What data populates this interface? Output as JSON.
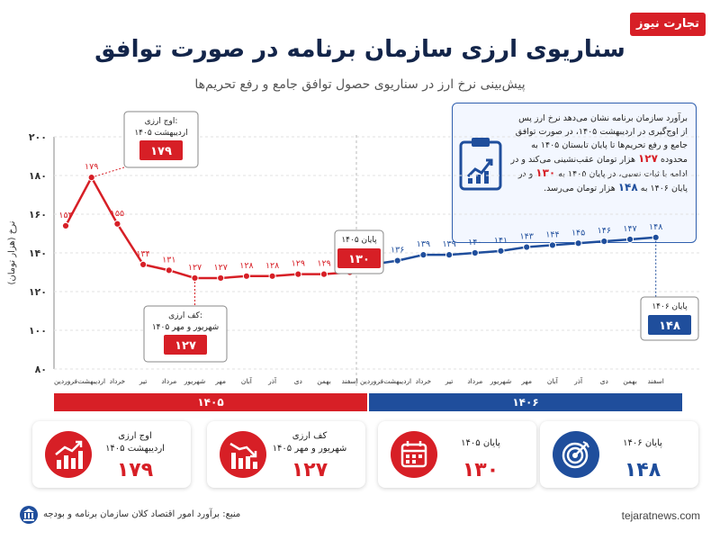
{
  "header": {
    "logo": "تجارت نیوز",
    "title": "سناریوی ارزی سازمان برنامه در صورت توافق",
    "subtitle": "پیش‌بینی نرخ ارز در سناریوی حصول توافق جامع و رفع تحریم‌ها"
  },
  "info": {
    "text_a": "برآورد سازمان برنامه نشان می‌دهد نرخ ارز پس از اوج‌گیری در اردیبهشت ۱۴۰۵، در صورت توافق جامع و رفع تحریم‌ها تا پایان تابستان ۱۴۰۵ به محدوده ",
    "text_a_num": "۱۲۷",
    "text_b": " هزار تومان عقب‌نشینی می‌کند و در ادامه با ثبات نسبی، در پایان ۱۴۰۵ به ",
    "text_b_num": "۱۳۰",
    "text_c": " و در پایان ۱۴۰۶ به ",
    "text_c_num": "۱۴۸",
    "text_d": " هزار تومان می‌رسد."
  },
  "chart_data": {
    "type": "line",
    "ylabel": "نرخ (هزار تومان)",
    "ylim": [
      80,
      200
    ],
    "yticks": [
      "۸۰",
      "۱۰۰",
      "۱۲۰",
      "۱۴۰",
      "۱۶۰",
      "۱۸۰",
      "۲۰۰"
    ],
    "ytick_values": [
      80,
      100,
      120,
      140,
      160,
      180,
      200
    ],
    "grid": true,
    "series": [
      {
        "name": "۱۴۰۵",
        "color": "#d71f26",
        "categories": [
          "فروردین",
          "اردیبهشت",
          "خرداد",
          "تیر",
          "مرداد",
          "شهریور",
          "مهر",
          "آبان",
          "آذر",
          "دی",
          "بهمن",
          "اسفند"
        ],
        "values": [
          154,
          179,
          155,
          134,
          131,
          127,
          127,
          128,
          128,
          129,
          129,
          130
        ],
        "labels": [
          "۱۵۴",
          "۱۷۹",
          "۱۵۵",
          "۱۳۴",
          "۱۳۱",
          "۱۲۷",
          "۱۲۷",
          "۱۲۸",
          "۱۲۸",
          "۱۲۹",
          "۱۲۹",
          "۱۳۰"
        ]
      },
      {
        "name": "۱۴۰۶",
        "color": "#1f4e9c",
        "categories": [
          "فروردین",
          "اردیبهشت",
          "خرداد",
          "تیر",
          "مرداد",
          "شهریور",
          "مهر",
          "آبان",
          "آذر",
          "دی",
          "بهمن",
          "اسفند"
        ],
        "values": [
          134,
          136,
          139,
          139,
          140,
          141,
          143,
          144,
          145,
          146,
          147,
          148
        ],
        "labels": [
          "۱۳۴",
          "۱۳۶",
          "۱۳۹",
          "۱۳۹",
          "۱۴۰",
          "۱۴۱",
          "۱۴۳",
          "۱۴۴",
          "۱۴۵",
          "۱۴۶",
          "۱۴۷",
          "۱۴۸"
        ]
      }
    ],
    "annotations": [
      {
        "series": 0,
        "index": 1,
        "title": "اوج ارزی:",
        "subtitle": "اردیبهشت ۱۴۰۵",
        "value": "۱۷۹",
        "style": "red"
      },
      {
        "series": 0,
        "index": 5,
        "title": "کف ارزی:",
        "subtitle": "شهریور و مهر ۱۴۰۵",
        "value": "۱۲۷",
        "style": "red"
      },
      {
        "series": 0,
        "index": 11,
        "title": "پایان ۱۴۰۵",
        "subtitle": "",
        "value": "۱۳۰",
        "style": "red"
      },
      {
        "series": 1,
        "index": 11,
        "title": "پایان ۱۴۰۶",
        "subtitle": "",
        "value": "۱۴۸",
        "style": "blue"
      }
    ]
  },
  "cards": [
    {
      "label1": "اوج ارزی",
      "label2": "اردیبهشت ۱۴۰۵",
      "value": "۱۷۹",
      "icon": "trend-up-chart-icon",
      "style": "red"
    },
    {
      "label1": "کف ارزی",
      "label2": "شهریور و مهر ۱۴۰۵",
      "value": "۱۲۷",
      "icon": "trend-down-chart-icon",
      "style": "red"
    },
    {
      "label1": "پایان ۱۴۰۵",
      "label2": "",
      "value": "۱۳۰",
      "icon": "calendar-icon",
      "style": "red"
    },
    {
      "label1": "پایان ۱۴۰۶",
      "label2": "",
      "value": "۱۴۸",
      "icon": "target-icon",
      "style": "blue"
    }
  ],
  "footer": {
    "source": "منبع: برآورد امور اقتصاد کلان سازمان برنامه و بودجه",
    "site": "tejaratnews.com"
  }
}
